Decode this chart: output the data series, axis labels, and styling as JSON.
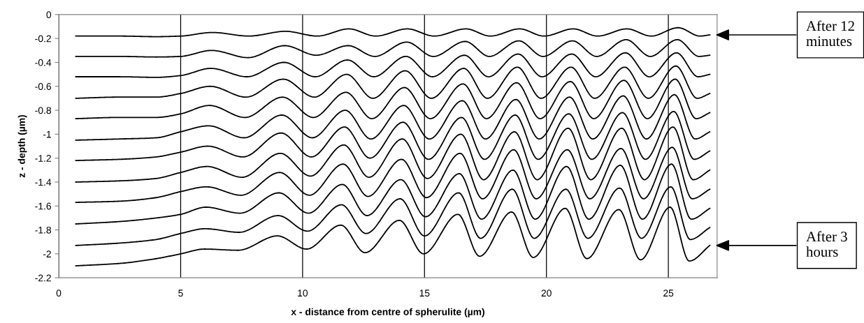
{
  "chart_data": {
    "type": "line",
    "xlabel": "x - distance from centre of spherulite (µm)",
    "ylabel": "z - depth (µm)",
    "xlim": [
      0,
      27
    ],
    "xticks": [
      0,
      5,
      10,
      15,
      20,
      25
    ],
    "ylim": [
      -2.2,
      0
    ],
    "yticks": [
      0,
      -0.2,
      -0.4,
      -0.6,
      -0.8,
      -1,
      -1.2,
      -1.4,
      -1.6,
      -1.8,
      -2,
      -2.2
    ],
    "grid": "x",
    "legend": false,
    "marker": "none",
    "line_style": "solid",
    "annotations": [
      "After 12 minutes",
      "After 3 hours"
    ],
    "series": [
      {
        "color": "#000000",
        "x": [
          0.7,
          2.5,
          4.0,
          5.0,
          6.3,
          7.8,
          9.3,
          10.6,
          11.9,
          13.0,
          14.3,
          15.4,
          16.7,
          17.7,
          18.9,
          19.9,
          21.1,
          22.1,
          23.3,
          24.3,
          25.4,
          26.3,
          26.7
        ],
        "values": [
          -0.18,
          -0.18,
          -0.185,
          -0.18,
          -0.15,
          -0.18,
          -0.14,
          -0.18,
          -0.12,
          -0.18,
          -0.12,
          -0.18,
          -0.12,
          -0.18,
          -0.12,
          -0.18,
          -0.12,
          -0.18,
          -0.12,
          -0.18,
          -0.11,
          -0.18,
          -0.17
        ]
      },
      {
        "color": "#000000",
        "x": [
          0.7,
          2.5,
          4.0,
          5.0,
          6.27,
          7.76,
          9.27,
          10.56,
          11.87,
          12.96,
          14.27,
          15.36,
          16.67,
          17.66,
          18.87,
          19.86,
          21.07,
          22.06,
          23.27,
          24.26,
          25.37,
          26.26,
          26.7
        ],
        "values": [
          -0.35,
          -0.35,
          -0.355,
          -0.35,
          -0.3,
          -0.36,
          -0.26,
          -0.34,
          -0.26,
          -0.35,
          -0.23,
          -0.35,
          -0.225,
          -0.35,
          -0.22,
          -0.35,
          -0.22,
          -0.35,
          -0.21,
          -0.35,
          -0.21,
          -0.35,
          -0.34
        ]
      },
      {
        "color": "#000000",
        "x": [
          0.7,
          2.5,
          4.0,
          5.0,
          6.24,
          7.72,
          9.24,
          10.52,
          11.84,
          12.92,
          14.24,
          15.32,
          16.64,
          17.62,
          18.84,
          19.82,
          21.04,
          22.02,
          23.24,
          24.22,
          25.34,
          26.22,
          26.7
        ],
        "values": [
          -0.52,
          -0.52,
          -0.525,
          -0.51,
          -0.45,
          -0.52,
          -0.4,
          -0.52,
          -0.38,
          -0.52,
          -0.35,
          -0.52,
          -0.34,
          -0.52,
          -0.33,
          -0.52,
          -0.33,
          -0.52,
          -0.32,
          -0.52,
          -0.32,
          -0.52,
          -0.5
        ]
      },
      {
        "color": "#000000",
        "x": [
          0.7,
          2.5,
          4.0,
          5.0,
          6.21,
          7.68,
          9.21,
          10.48,
          11.81,
          12.88,
          14.21,
          15.28,
          16.61,
          17.58,
          18.81,
          19.78,
          21.01,
          21.98,
          23.21,
          24.18,
          25.31,
          26.18,
          26.7
        ],
        "values": [
          -0.7,
          -0.69,
          -0.69,
          -0.66,
          -0.6,
          -0.69,
          -0.54,
          -0.69,
          -0.5,
          -0.7,
          -0.47,
          -0.7,
          -0.45,
          -0.7,
          -0.44,
          -0.7,
          -0.44,
          -0.7,
          -0.44,
          -0.7,
          -0.43,
          -0.7,
          -0.66
        ]
      },
      {
        "color": "#000000",
        "x": [
          0.7,
          2.5,
          4.0,
          5.0,
          6.18,
          7.64,
          9.18,
          10.44,
          11.78,
          12.84,
          14.18,
          15.24,
          16.58,
          17.54,
          18.78,
          19.74,
          20.98,
          21.94,
          23.18,
          24.14,
          25.28,
          26.14,
          26.7
        ],
        "values": [
          -0.87,
          -0.86,
          -0.86,
          -0.83,
          -0.76,
          -0.86,
          -0.69,
          -0.86,
          -0.65,
          -0.87,
          -0.61,
          -0.87,
          -0.58,
          -0.87,
          -0.57,
          -0.87,
          -0.56,
          -0.87,
          -0.55,
          -0.87,
          -0.54,
          -0.87,
          -0.82
        ]
      },
      {
        "color": "#000000",
        "x": [
          0.7,
          2.5,
          4.0,
          5.0,
          6.15,
          7.6,
          9.15,
          10.4,
          11.75,
          12.8,
          14.15,
          15.2,
          16.55,
          17.5,
          18.75,
          19.7,
          20.95,
          21.9,
          23.15,
          24.1,
          25.25,
          26.1,
          26.7
        ],
        "values": [
          -1.05,
          -1.04,
          -1.03,
          -0.98,
          -0.93,
          -1.03,
          -0.84,
          -1.03,
          -0.8,
          -1.04,
          -0.76,
          -1.04,
          -0.72,
          -1.04,
          -0.71,
          -1.04,
          -0.69,
          -1.04,
          -0.68,
          -1.04,
          -0.67,
          -1.04,
          -0.98
        ]
      },
      {
        "color": "#000000",
        "x": [
          0.7,
          2.5,
          4.0,
          5.0,
          6.12,
          7.56,
          9.12,
          10.36,
          11.72,
          12.76,
          14.12,
          15.16,
          16.52,
          17.46,
          18.72,
          19.66,
          20.92,
          21.86,
          23.12,
          24.06,
          25.22,
          26.06,
          26.7
        ],
        "values": [
          -1.22,
          -1.21,
          -1.19,
          -1.15,
          -1.1,
          -1.19,
          -0.99,
          -1.19,
          -0.94,
          -1.2,
          -0.9,
          -1.21,
          -0.86,
          -1.21,
          -0.84,
          -1.21,
          -0.83,
          -1.21,
          -0.82,
          -1.21,
          -0.81,
          -1.21,
          -1.14
        ]
      },
      {
        "color": "#000000",
        "x": [
          0.7,
          2.5,
          4.0,
          5.0,
          6.09,
          7.52,
          9.09,
          10.32,
          11.69,
          12.72,
          14.09,
          15.12,
          16.49,
          17.42,
          18.69,
          19.62,
          20.89,
          21.82,
          23.09,
          24.02,
          25.19,
          26.02,
          26.7
        ],
        "values": [
          -1.4,
          -1.39,
          -1.37,
          -1.32,
          -1.27,
          -1.36,
          -1.16,
          -1.35,
          -1.09,
          -1.36,
          -1.04,
          -1.37,
          -1.0,
          -1.38,
          -0.98,
          -1.38,
          -0.95,
          -1.38,
          -0.95,
          -1.38,
          -0.94,
          -1.38,
          -1.3
        ]
      },
      {
        "color": "#000000",
        "x": [
          0.7,
          2.5,
          4.0,
          5.0,
          6.06,
          7.48,
          9.06,
          10.28,
          11.66,
          12.68,
          14.06,
          15.08,
          16.46,
          17.38,
          18.66,
          19.58,
          20.86,
          21.78,
          23.06,
          23.98,
          25.16,
          25.98,
          26.7
        ],
        "values": [
          -1.57,
          -1.56,
          -1.53,
          -1.48,
          -1.44,
          -1.51,
          -1.32,
          -1.51,
          -1.25,
          -1.52,
          -1.21,
          -1.53,
          -1.16,
          -1.54,
          -1.13,
          -1.54,
          -1.13,
          -1.54,
          -1.12,
          -1.54,
          -1.11,
          -1.54,
          -1.46
        ]
      },
      {
        "color": "#000000",
        "x": [
          0.7,
          2.5,
          4.0,
          5.0,
          6.03,
          7.44,
          9.03,
          10.24,
          11.63,
          12.64,
          14.03,
          15.04,
          16.43,
          17.34,
          18.63,
          19.54,
          20.83,
          21.74,
          23.03,
          23.94,
          25.13,
          25.94,
          26.7
        ],
        "values": [
          -1.75,
          -1.73,
          -1.7,
          -1.67,
          -1.61,
          -1.66,
          -1.49,
          -1.66,
          -1.42,
          -1.68,
          -1.38,
          -1.69,
          -1.33,
          -1.71,
          -1.3,
          -1.71,
          -1.27,
          -1.71,
          -1.26,
          -1.71,
          -1.25,
          -1.71,
          -1.62
        ]
      },
      {
        "color": "#000000",
        "x": [
          0.7,
          2.5,
          4.0,
          5.0,
          6.0,
          7.4,
          9.0,
          10.2,
          11.6,
          12.6,
          14.0,
          15.0,
          16.4,
          17.3,
          18.6,
          19.5,
          20.8,
          21.7,
          23.0,
          23.9,
          25.1,
          25.9,
          26.7
        ],
        "values": [
          -1.93,
          -1.91,
          -1.88,
          -1.83,
          -1.79,
          -1.82,
          -1.68,
          -1.81,
          -1.59,
          -1.83,
          -1.54,
          -1.85,
          -1.49,
          -1.87,
          -1.46,
          -1.87,
          -1.46,
          -1.87,
          -1.45,
          -1.87,
          -1.44,
          -1.88,
          -1.78
        ]
      },
      {
        "color": "#000000",
        "x": [
          0.7,
          2.5,
          4.0,
          5.0,
          5.97,
          7.36,
          8.97,
          10.16,
          11.57,
          12.56,
          13.97,
          14.96,
          16.37,
          17.26,
          18.57,
          19.46,
          20.77,
          21.66,
          22.97,
          23.86,
          25.07,
          25.86,
          26.7
        ],
        "values": [
          -2.1,
          -2.08,
          -2.04,
          -2.0,
          -1.96,
          -1.97,
          -1.85,
          -1.96,
          -1.76,
          -1.99,
          -1.72,
          -2.0,
          -1.67,
          -2.02,
          -1.65,
          -2.03,
          -1.62,
          -2.04,
          -1.63,
          -2.05,
          -1.61,
          -2.06,
          -1.93
        ]
      }
    ]
  }
}
